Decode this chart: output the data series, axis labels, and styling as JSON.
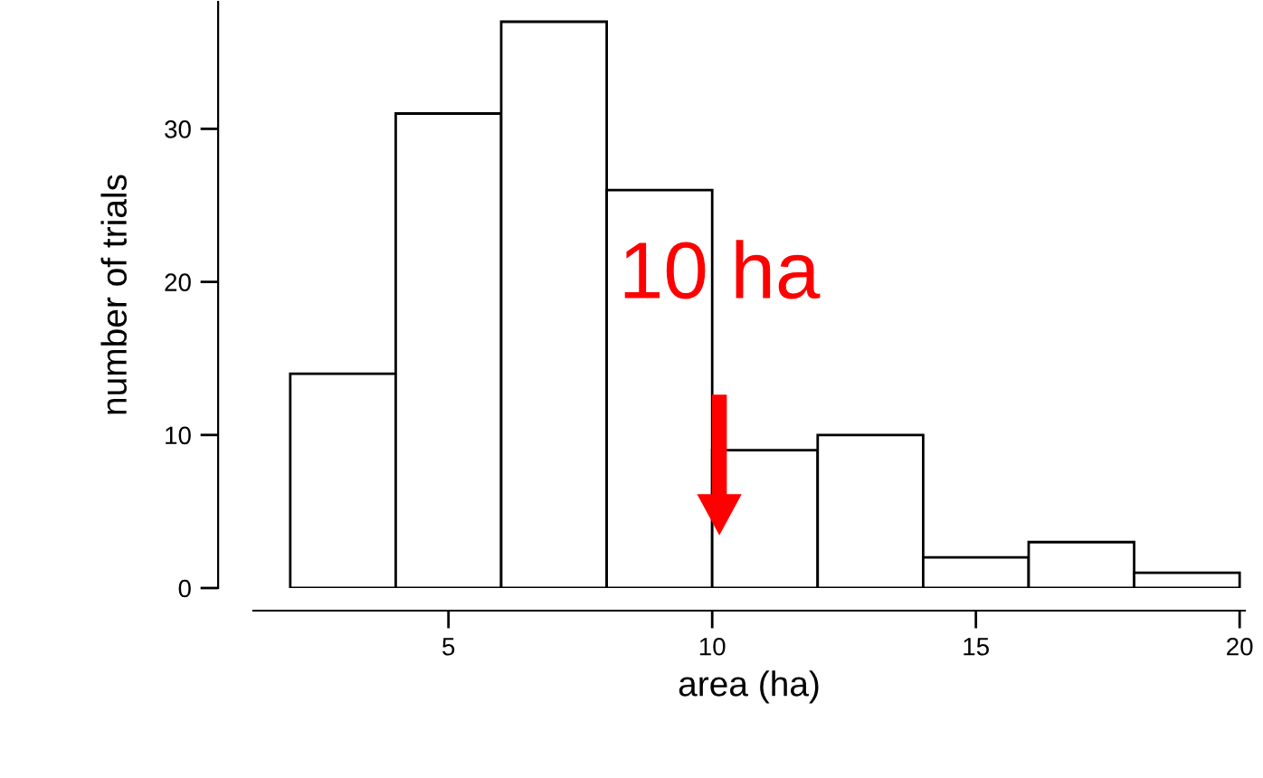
{
  "chart_data": {
    "type": "histogram",
    "xlabel": "area (ha)",
    "ylabel": "number of trials",
    "bins": [
      2,
      4,
      6,
      8,
      10,
      12,
      14,
      16,
      18,
      20
    ],
    "values": [
      14,
      31,
      37,
      26,
      9,
      10,
      2,
      3,
      1
    ],
    "color": "#ffffff",
    "xlim": [
      1.3,
      20.1
    ],
    "ylim": [
      0,
      38.3
    ],
    "xticks": [
      5,
      10,
      15,
      20
    ],
    "yticks": [
      0,
      10,
      20,
      30
    ],
    "grid": false,
    "annotations": [
      "10 ha"
    ]
  }
}
